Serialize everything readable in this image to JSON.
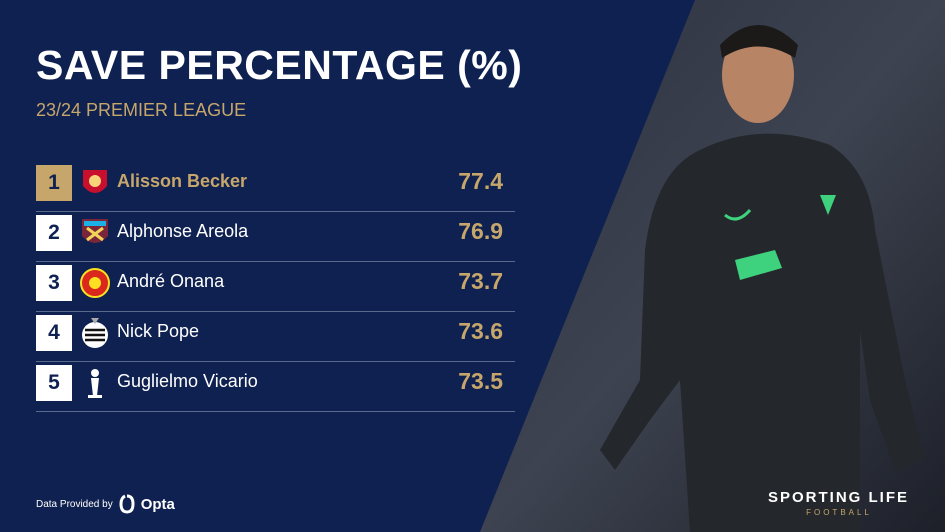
{
  "header": {
    "title": "SAVE PERCENTAGE (%)",
    "subtitle": "23/24 PREMIER LEAGUE"
  },
  "table": {
    "rows": [
      {
        "rank": 1,
        "name": "Alisson Becker",
        "value": 77.4
      },
      {
        "rank": 2,
        "name": "Alphonse Areola",
        "value": 76.9
      },
      {
        "rank": 3,
        "name": "André Onana",
        "value": 73.7
      },
      {
        "rank": 4,
        "name": "Nick Pope",
        "value": 73.6
      },
      {
        "rank": 5,
        "name": "Guglielmo Vicario",
        "value": 73.5
      }
    ]
  },
  "footer": {
    "provided_by": "Data Provided by",
    "provider": "Opta",
    "brand": "SPORTING LIFE",
    "brand_sub": "FOOTBALL"
  }
}
